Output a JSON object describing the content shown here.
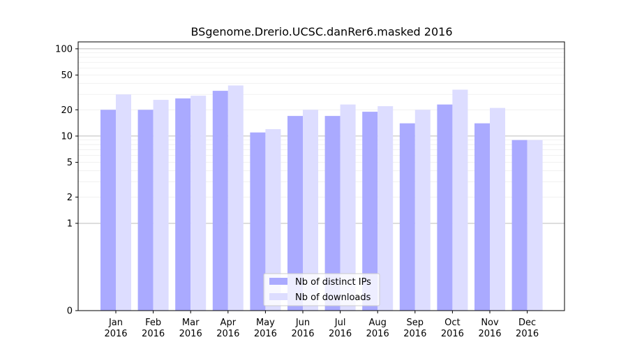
{
  "chart_data": {
    "type": "bar",
    "title": "BSgenome.Drerio.UCSC.danRer6.masked 2016",
    "xlabel": "",
    "ylabel": "",
    "categories": [
      [
        "Jan",
        "2016"
      ],
      [
        "Feb",
        "2016"
      ],
      [
        "Mar",
        "2016"
      ],
      [
        "Apr",
        "2016"
      ],
      [
        "May",
        "2016"
      ],
      [
        "Jun",
        "2016"
      ],
      [
        "Jul",
        "2016"
      ],
      [
        "Aug",
        "2016"
      ],
      [
        "Sep",
        "2016"
      ],
      [
        "Oct",
        "2016"
      ],
      [
        "Nov",
        "2016"
      ],
      [
        "Dec",
        "2016"
      ]
    ],
    "series": [
      {
        "name": "Nb of distinct IPs",
        "color": "#aaaaff",
        "values": [
          20,
          20,
          27,
          33,
          11,
          17,
          17,
          19,
          14,
          23,
          14,
          9
        ]
      },
      {
        "name": "Nb of downloads",
        "color": "#ddddff",
        "values": [
          30,
          26,
          29,
          38,
          12,
          20,
          23,
          22,
          20,
          34,
          21,
          9
        ]
      }
    ],
    "y_scale": "symlog",
    "ylim": [
      0,
      120
    ],
    "y_ticks": [
      0,
      1,
      2,
      5,
      10,
      20,
      50,
      100
    ],
    "grid": true,
    "legend_position": "bottom-center"
  }
}
